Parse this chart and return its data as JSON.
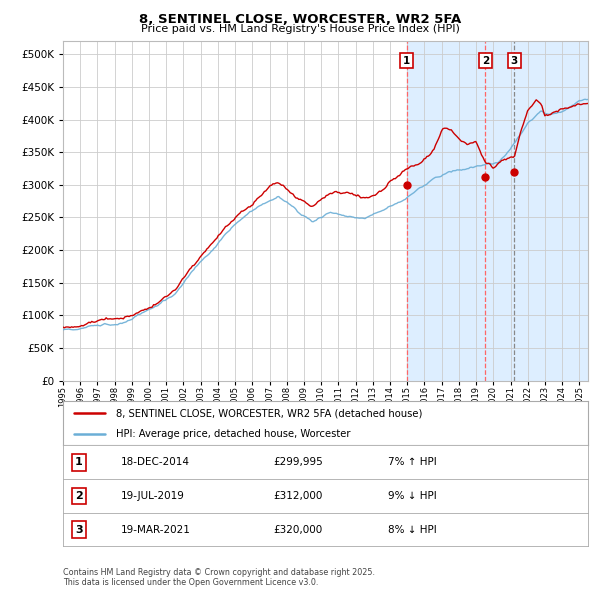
{
  "title": "8, SENTINEL CLOSE, WORCESTER, WR2 5FA",
  "subtitle": "Price paid vs. HM Land Registry's House Price Index (HPI)",
  "ylim": [
    0,
    520000
  ],
  "yticks": [
    0,
    50000,
    100000,
    150000,
    200000,
    250000,
    300000,
    350000,
    400000,
    450000,
    500000
  ],
  "hpi_color": "#6baed6",
  "price_color": "#cc0000",
  "vline1_color": "#ff6666",
  "vline2_color": "#ff6666",
  "vline3_color": "#888888",
  "shade_color": "#ddeeff",
  "background_color": "#ffffff",
  "grid_color": "#cccccc",
  "sale_points": [
    {
      "year": 2014.96,
      "price": 299995,
      "label": "1"
    },
    {
      "year": 2019.54,
      "price": 312000,
      "label": "2"
    },
    {
      "year": 2021.22,
      "price": 320000,
      "label": "3"
    }
  ],
  "sale_annotations": [
    {
      "label": "1",
      "date": "18-DEC-2014",
      "price": "£299,995",
      "pct": "7% ↑ HPI"
    },
    {
      "label": "2",
      "date": "19-JUL-2019",
      "price": "£312,000",
      "pct": "9% ↓ HPI"
    },
    {
      "label": "3",
      "date": "19-MAR-2021",
      "price": "£320,000",
      "pct": "8% ↓ HPI"
    }
  ],
  "legend_line1": "8, SENTINEL CLOSE, WORCESTER, WR2 5FA (detached house)",
  "legend_line2": "HPI: Average price, detached house, Worcester",
  "footnote": "Contains HM Land Registry data © Crown copyright and database right 2025.\nThis data is licensed under the Open Government Licence v3.0."
}
